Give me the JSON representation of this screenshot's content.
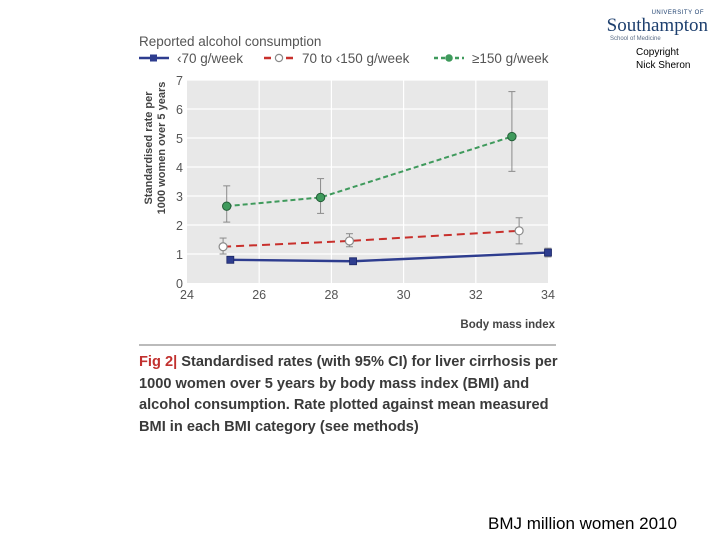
{
  "logo": {
    "university_of": "UNIVERSITY OF",
    "name": "Southampton",
    "school": "School of Medicine"
  },
  "copyright": [
    "Copyright",
    "Nick Sheron"
  ],
  "caption": {
    "fig_label": "Fig 2",
    "text": "Standardised rates (with 95% CI) for liver cirrhosis per 1000 women over 5 years by body mass index (BMI) and alcohol consumption. Rate plotted against mean measured BMI in each BMI category (see methods)"
  },
  "source": "BMJ million women 2010",
  "colors": {
    "series1": "#2e3d8f",
    "series2": "#c8302c",
    "series3": "#3f9a5c",
    "plot_bg": "#e8e8e8",
    "grid": "#ffffff",
    "text": "#555555"
  },
  "chart_data": {
    "type": "line",
    "title": "Reported alcohol consumption",
    "xlabel": "Body mass index",
    "ylabel": [
      "Standardised rate per",
      "1000 women over 5 years"
    ],
    "xlim": [
      24,
      34
    ],
    "ylim": [
      0,
      7
    ],
    "xticks": [
      24,
      26,
      28,
      30,
      32,
      34
    ],
    "yticks": [
      0,
      1,
      2,
      3,
      4,
      5,
      6,
      7
    ],
    "grid": true,
    "legend_position": "top",
    "series": [
      {
        "name": "<70 g/week",
        "legend_label": "‹70 g/week",
        "style": "solid",
        "marker": "square",
        "points": [
          {
            "x": 25.2,
            "y": 0.8,
            "lo": 0.7,
            "hi": 0.9
          },
          {
            "x": 28.6,
            "y": 0.75,
            "lo": 0.65,
            "hi": 0.85
          },
          {
            "x": 34.0,
            "y": 1.05,
            "lo": 0.9,
            "hi": 1.2
          }
        ]
      },
      {
        "name": "70 to <150 g/week",
        "legend_label": "70 to ‹150 g/week",
        "style": "dashed",
        "marker": "open-circle",
        "points": [
          {
            "x": 25.0,
            "y": 1.25,
            "lo": 1.0,
            "hi": 1.55
          },
          {
            "x": 28.5,
            "y": 1.45,
            "lo": 1.25,
            "hi": 1.7
          },
          {
            "x": 33.2,
            "y": 1.8,
            "lo": 1.35,
            "hi": 2.25
          }
        ]
      },
      {
        "name": "≥150 g/week",
        "legend_label": "≥150 g/week",
        "style": "dashed",
        "marker": "filled-circle",
        "points": [
          {
            "x": 25.1,
            "y": 2.65,
            "lo": 2.1,
            "hi": 3.35
          },
          {
            "x": 27.7,
            "y": 2.95,
            "lo": 2.4,
            "hi": 3.6
          },
          {
            "x": 33.0,
            "y": 5.05,
            "lo": 3.85,
            "hi": 6.6
          }
        ]
      }
    ]
  }
}
